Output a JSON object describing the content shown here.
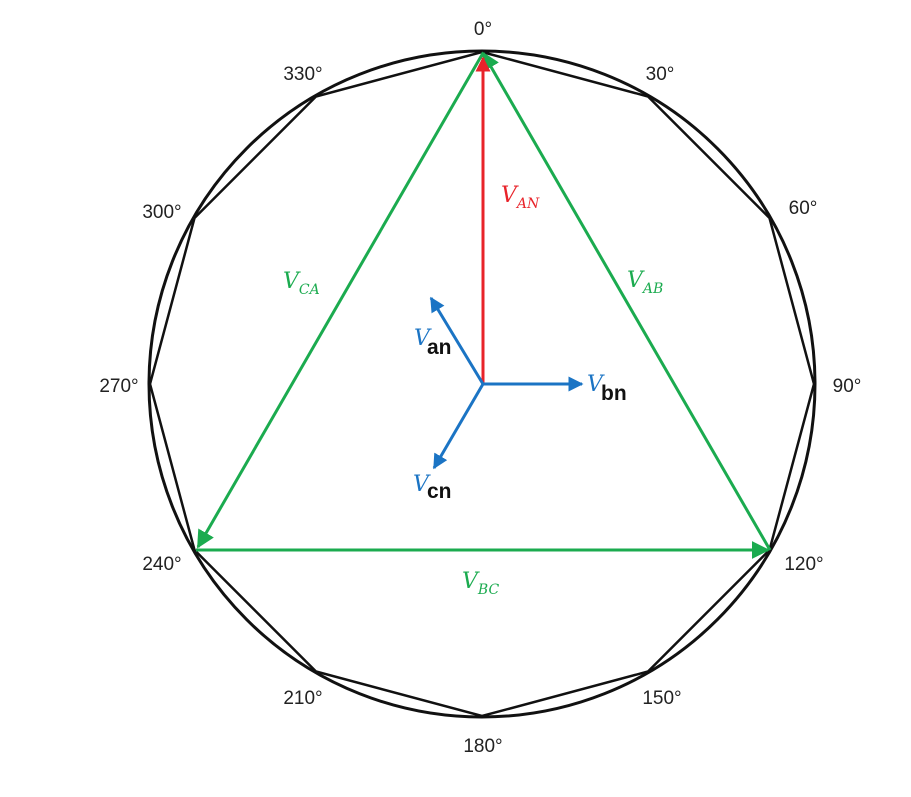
{
  "colors": {
    "polygon": "#111111",
    "line_voltage": "#1bab4f",
    "van": "#e8232a",
    "phase_small": "#1b74c4",
    "overlay_text": "#111111"
  },
  "angles": [
    "0°",
    "30°",
    "60°",
    "90°",
    "120°",
    "150°",
    "180°",
    "210°",
    "240°",
    "270°",
    "300°",
    "330°"
  ],
  "line_voltages": {
    "ab": {
      "symbol": "V",
      "sub": "AB"
    },
    "bc": {
      "symbol": "V",
      "sub": "BC"
    },
    "ca": {
      "symbol": "V",
      "sub": "CA"
    }
  },
  "phase_voltage_an": {
    "symbol": "V",
    "sub": "AN"
  },
  "phase_small": {
    "an": {
      "symbol": "V",
      "tag": "an"
    },
    "bn": {
      "symbol": "V",
      "tag": "bn"
    },
    "cn": {
      "symbol": "V",
      "tag": "cn"
    }
  }
}
